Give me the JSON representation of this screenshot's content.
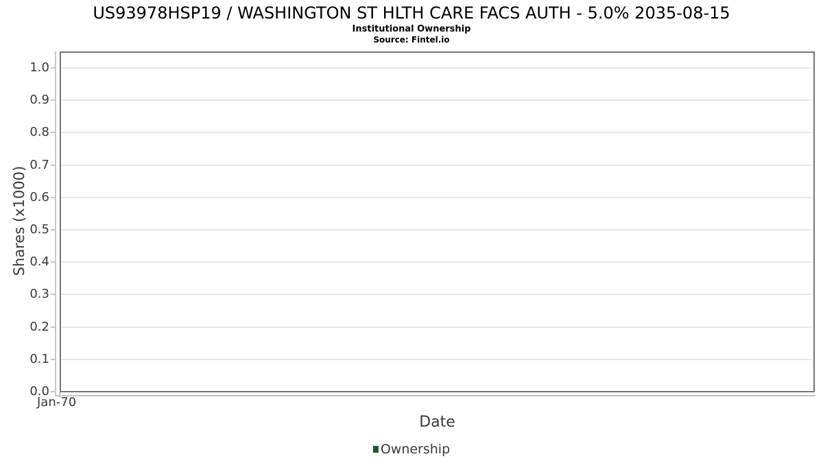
{
  "header": {
    "title": "US93978HSP19 / WASHINGTON ST HLTH CARE FACS AUTH - 5.0% 2035-08-15",
    "subtitle": "Institutional Ownership",
    "source": "Source: Fintel.io"
  },
  "chart_data": {
    "type": "line",
    "title": "US93978HSP19 / WASHINGTON ST HLTH CARE FACS AUTH - 5.0% 2035-08-15",
    "subtitle": "Institutional Ownership",
    "source": "Source: Fintel.io",
    "xlabel": "Date",
    "ylabel": "Shares (x1000)",
    "ylim": [
      0.0,
      1.05
    ],
    "yticks": [
      1.0,
      0.9,
      0.8,
      0.7,
      0.6,
      0.5,
      0.4,
      0.3,
      0.2,
      0.1,
      0.0
    ],
    "ytick_labels": [
      "1.0",
      "0.9",
      "0.8",
      "0.7",
      "0.6",
      "0.5",
      "0.4",
      "0.3",
      "0.2",
      "0.1",
      "0.0"
    ],
    "xticks": [
      "Jan-70"
    ],
    "grid": "horizontal",
    "legend_position": "bottom-center",
    "series": [
      {
        "name": "Ownership",
        "color": "#1d5a2f",
        "x": [],
        "values": []
      }
    ]
  },
  "colors": {
    "plot_border": "#757575",
    "axis_line": "#c6c6c6",
    "gridline": "#e8e8e8",
    "text": "#3a3a3a",
    "title_text": "#000000",
    "legend_marker": "#1d5a2f"
  }
}
